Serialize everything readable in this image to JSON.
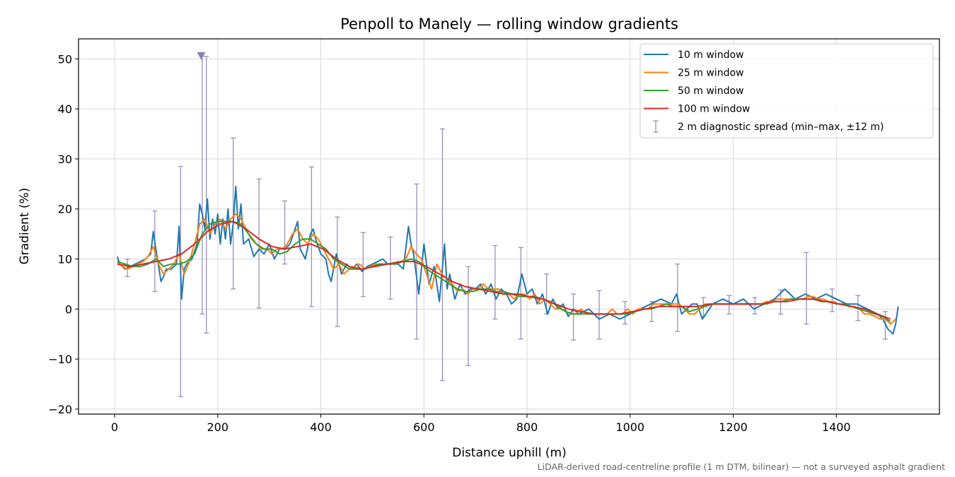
{
  "chart_data": {
    "type": "line",
    "title": "Penpoll to Manely — rolling window gradients",
    "xlabel": "Distance uphill (m)",
    "ylabel": "Gradient (%)",
    "xlim": [
      -70,
      1600
    ],
    "ylim": [
      -21,
      54
    ],
    "xticks": [
      0,
      200,
      400,
      600,
      800,
      1000,
      1200,
      1400
    ],
    "xtick_labels": [
      "0",
      "200",
      "400",
      "600",
      "800",
      "1000",
      "1200",
      "1400"
    ],
    "yticks": [
      -20,
      -10,
      0,
      10,
      20,
      30,
      40,
      50
    ],
    "ytick_labels": [
      "−20",
      "−10",
      "0",
      "10",
      "20",
      "30",
      "40",
      "50"
    ],
    "grid": true,
    "legend_position": "top-right",
    "footnote": "LiDAR-derived road-centreline profile (1 m DTM, bilinear) — not a surveyed asphalt gradient",
    "series": [
      {
        "name": "10 m window",
        "color": "#1f77b4",
        "x": [
          5,
          10,
          20,
          30,
          40,
          50,
          60,
          70,
          75,
          80,
          90,
          95,
          100,
          110,
          120,
          125,
          130,
          135,
          140,
          150,
          160,
          165,
          170,
          175,
          180,
          185,
          190,
          195,
          200,
          205,
          210,
          215,
          220,
          225,
          230,
          235,
          240,
          245,
          250,
          260,
          270,
          280,
          290,
          300,
          310,
          320,
          330,
          340,
          350,
          355,
          360,
          370,
          380,
          385,
          390,
          400,
          410,
          415,
          420,
          430,
          440,
          450,
          460,
          470,
          480,
          490,
          500,
          510,
          520,
          530,
          540,
          550,
          560,
          570,
          575,
          580,
          590,
          600,
          610,
          620,
          630,
          640,
          645,
          650,
          660,
          670,
          680,
          690,
          700,
          710,
          720,
          730,
          740,
          750,
          760,
          770,
          780,
          790,
          800,
          810,
          820,
          830,
          840,
          850,
          860,
          870,
          880,
          890,
          900,
          920,
          940,
          960,
          980,
          1000,
          1020,
          1040,
          1060,
          1080,
          1090,
          1100,
          1120,
          1130,
          1140,
          1160,
          1180,
          1200,
          1220,
          1240,
          1260,
          1280,
          1300,
          1320,
          1340,
          1360,
          1380,
          1400,
          1420,
          1440,
          1460,
          1480,
          1490,
          1500,
          1510,
          1515,
          1520
        ],
        "y": [
          10.5,
          9,
          8,
          8.5,
          9,
          9.5,
          10,
          11,
          15.5,
          12,
          5.5,
          6.5,
          8,
          8,
          9,
          16.5,
          2,
          8,
          9,
          10,
          13,
          21,
          19,
          16,
          22,
          14,
          18,
          15,
          19,
          13,
          18,
          14,
          20,
          13,
          17,
          24.5,
          16,
          21,
          13,
          14,
          10.5,
          12,
          11,
          13,
          10,
          12,
          12,
          13,
          16,
          17.5,
          12,
          10,
          15,
          16,
          14,
          11,
          10,
          7,
          5.5,
          11,
          7,
          9,
          8,
          9,
          7.5,
          8.5,
          9,
          9.5,
          10,
          9,
          9,
          9,
          8,
          16.5,
          13,
          11,
          3,
          13,
          5,
          8.5,
          1.5,
          13,
          4,
          7,
          2,
          5,
          3,
          4,
          4,
          5,
          3,
          5,
          2,
          4,
          3,
          1,
          2,
          7,
          3,
          4,
          1,
          3,
          -1,
          2,
          0,
          1,
          -1.5,
          0,
          -1,
          0,
          -2,
          -1,
          -2,
          -1,
          0,
          1,
          2,
          1,
          3,
          -1,
          1,
          1,
          -2,
          1,
          2,
          1,
          2,
          0,
          1,
          2,
          4,
          2,
          3,
          2,
          3,
          2,
          1,
          1,
          0,
          -1,
          -2,
          -4,
          -5,
          -3,
          0.5
        ]
      },
      {
        "name": "25 m window",
        "color": "#ff7f0e",
        "x": [
          5,
          15,
          25,
          35,
          45,
          55,
          65,
          75,
          85,
          95,
          105,
          115,
          125,
          135,
          145,
          155,
          165,
          175,
          185,
          195,
          205,
          215,
          225,
          235,
          245,
          255,
          265,
          275,
          285,
          295,
          305,
          315,
          325,
          335,
          345,
          355,
          365,
          375,
          385,
          395,
          405,
          415,
          425,
          435,
          445,
          455,
          465,
          475,
          485,
          495,
          505,
          515,
          525,
          535,
          545,
          555,
          565,
          575,
          585,
          595,
          605,
          615,
          625,
          635,
          645,
          655,
          665,
          675,
          685,
          695,
          705,
          715,
          725,
          735,
          745,
          755,
          765,
          775,
          785,
          795,
          805,
          815,
          825,
          835,
          845,
          855,
          865,
          875,
          885,
          895,
          905,
          915,
          925,
          935,
          945,
          955,
          965,
          975,
          985,
          995,
          1005,
          1015,
          1025,
          1035,
          1045,
          1055,
          1065,
          1075,
          1085,
          1095,
          1105,
          1115,
          1125,
          1135,
          1145,
          1155,
          1165,
          1175,
          1185,
          1195,
          1205,
          1215,
          1225,
          1235,
          1245,
          1255,
          1265,
          1275,
          1285,
          1295,
          1305,
          1315,
          1325,
          1335,
          1345,
          1355,
          1365,
          1375,
          1385,
          1395,
          1405,
          1415,
          1425,
          1435,
          1445,
          1455,
          1465,
          1475,
          1485,
          1495,
          1505,
          1515
        ],
        "y": [
          9.5,
          8.5,
          8,
          8.5,
          9,
          9.5,
          10.5,
          12.5,
          9,
          7,
          8,
          9,
          11,
          7,
          9.5,
          13,
          17,
          18,
          15,
          17,
          18,
          16,
          18,
          19,
          18,
          16,
          14,
          13,
          12,
          12,
          11,
          12,
          12,
          13,
          15,
          16,
          14,
          13,
          15,
          14,
          12,
          10,
          8,
          9,
          7,
          8,
          8.5,
          9,
          8,
          8.5,
          9,
          9,
          9,
          9,
          9,
          9.5,
          10,
          12.5,
          11,
          10,
          7,
          4,
          9,
          7,
          6,
          5,
          3.5,
          4,
          3,
          4,
          4,
          5,
          4,
          4,
          4,
          3,
          3,
          2,
          3,
          3,
          2,
          3,
          1,
          2,
          1,
          0,
          0,
          -0.5,
          -1,
          -1,
          0,
          -1,
          -1,
          -1,
          -1,
          -1,
          0,
          -1,
          -1,
          0,
          -1,
          0,
          0,
          0,
          1,
          1,
          1,
          1,
          1,
          1,
          0,
          -1,
          -1,
          0,
          1,
          1,
          1,
          1,
          1,
          1,
          1,
          1,
          1,
          1,
          1,
          1,
          1.5,
          1.5,
          2,
          2,
          2,
          2,
          2,
          2,
          2.5,
          2.5,
          2,
          2,
          1.5,
          1.5,
          1,
          1,
          0.5,
          0.5,
          0,
          -1,
          -1,
          -1.5,
          -2,
          -2,
          -3,
          -2
        ]
      },
      {
        "name": "50 m window",
        "color": "#2ca02c",
        "x": [
          5,
          20,
          35,
          50,
          65,
          80,
          95,
          110,
          125,
          140,
          155,
          170,
          185,
          200,
          215,
          230,
          245,
          260,
          275,
          290,
          305,
          320,
          335,
          350,
          365,
          380,
          395,
          410,
          425,
          440,
          455,
          470,
          485,
          500,
          515,
          530,
          545,
          560,
          575,
          590,
          605,
          620,
          635,
          650,
          665,
          680,
          695,
          710,
          725,
          740,
          755,
          770,
          785,
          800,
          815,
          830,
          845,
          860,
          875,
          890,
          905,
          920,
          935,
          950,
          965,
          980,
          995,
          1010,
          1025,
          1040,
          1055,
          1070,
          1085,
          1100,
          1115,
          1130,
          1145,
          1160,
          1175,
          1190,
          1205,
          1220,
          1235,
          1250,
          1265,
          1280,
          1295,
          1310,
          1325,
          1340,
          1355,
          1370,
          1385,
          1400,
          1415,
          1430,
          1445,
          1460,
          1475,
          1490,
          1505
        ],
        "y": [
          9.5,
          9,
          8.5,
          8.5,
          9,
          10,
          8.5,
          9,
          9,
          9.5,
          11,
          15,
          17,
          17.5,
          17.5,
          17.5,
          17,
          15,
          13,
          12,
          12,
          11,
          11.5,
          13,
          14,
          14,
          13,
          12,
          10,
          9,
          8,
          8,
          8,
          8.5,
          9,
          9,
          9,
          9.5,
          10,
          9.5,
          8,
          7,
          6,
          5,
          4,
          3.5,
          3.5,
          4,
          4,
          3.5,
          3.5,
          3,
          2.5,
          2.5,
          2.5,
          2,
          1.5,
          0.5,
          -0.5,
          -1,
          -1,
          -1,
          -1,
          -1,
          -1,
          -1,
          -1,
          -0.5,
          0,
          0,
          0.5,
          1,
          0.5,
          0.5,
          -0.5,
          0,
          0.5,
          1,
          1,
          1,
          1,
          1,
          1,
          1,
          1,
          1.5,
          1.5,
          2,
          2,
          2,
          2,
          1.5,
          1.5,
          1,
          1,
          0.5,
          0,
          -0.5,
          -1,
          -1.5,
          -2.5
        ]
      },
      {
        "name": "100 m window",
        "color": "#d62728",
        "x": [
          5,
          30,
          55,
          80,
          105,
          130,
          155,
          180,
          205,
          230,
          255,
          280,
          305,
          330,
          355,
          380,
          405,
          430,
          455,
          480,
          505,
          530,
          555,
          580,
          605,
          630,
          655,
          680,
          705,
          730,
          755,
          780,
          805,
          830,
          855,
          880,
          905,
          930,
          955,
          980,
          1005,
          1030,
          1055,
          1080,
          1105,
          1130,
          1155,
          1180,
          1205,
          1230,
          1255,
          1280,
          1305,
          1330,
          1355,
          1380,
          1405,
          1430,
          1455,
          1480,
          1505
        ],
        "y": [
          9,
          8.5,
          9,
          9.5,
          10,
          11,
          13,
          15.5,
          17,
          17.5,
          16,
          14,
          12.5,
          12,
          12.5,
          13,
          12,
          10,
          8.5,
          8,
          8.5,
          9,
          9.5,
          9.5,
          8.5,
          7,
          5.5,
          4.5,
          4,
          3.5,
          3,
          3,
          2.5,
          2,
          1,
          0,
          -0.5,
          -1,
          -1,
          -1,
          -0.5,
          0,
          0.5,
          0.5,
          0.5,
          0.5,
          1,
          1,
          1,
          1,
          1,
          1.5,
          1.5,
          2,
          2,
          1.5,
          1,
          0.5,
          0,
          -1,
          -2
        ]
      },
      {
        "name": "2 m diagnostic spread (min–max, ±12 m)",
        "type": "errorbar",
        "color": "#9a90bd",
        "x": [
          25,
          78,
          128,
          170,
          178,
          230,
          280,
          330,
          382,
          432,
          482,
          535,
          586,
          636,
          686,
          738,
          788,
          838,
          890,
          940,
          990,
          1042,
          1092,
          1142,
          1192,
          1242,
          1292,
          1342,
          1392,
          1442,
          1495
        ],
        "y": [
          8.5,
          11,
          9,
          15,
          18,
          17,
          12.5,
          12.5,
          14.5,
          9,
          8,
          8,
          9,
          10,
          3.5,
          4.5,
          3,
          2,
          -1,
          -1,
          -1,
          -0.5,
          2,
          0.5,
          1,
          1,
          1.5,
          2,
          1.5,
          0,
          -2.5
        ],
        "min": [
          6.5,
          3.5,
          -17.5,
          -1,
          -4.8,
          4,
          0.2,
          9,
          0.5,
          -3.5,
          2.5,
          2,
          -6,
          -14.3,
          -11.3,
          -2,
          -6,
          -1,
          -6.2,
          -6,
          -3,
          -2.5,
          -4.5,
          -1.5,
          -1,
          -1,
          -1,
          -3,
          -0.5,
          -2.3,
          -6
        ],
        "max": [
          10,
          19.6,
          28.5,
          50.5,
          50.5,
          34.2,
          26,
          21.6,
          28.4,
          18.4,
          15.3,
          14.4,
          25,
          36,
          8.5,
          12.7,
          12.3,
          7,
          3,
          3.7,
          1.5,
          1.5,
          9,
          2.3,
          2.7,
          2.3,
          3.8,
          11.3,
          4,
          2.7,
          -0.5
        ]
      }
    ],
    "clipped_marker": {
      "x": 168,
      "y": 50.5,
      "symbol": "▼"
    }
  }
}
